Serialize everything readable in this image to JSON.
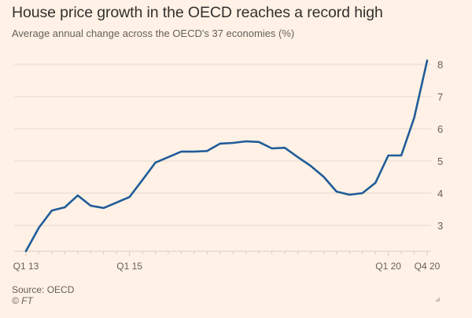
{
  "chart_data": {
    "type": "line",
    "title": "House price growth in the OECD reaches a record high",
    "subtitle": "Average annual change across the OECD's 37 economies (%)",
    "xlabel": "",
    "ylabel": "",
    "x": [
      "Q1 13",
      "Q2 13",
      "Q3 13",
      "Q4 13",
      "Q1 14",
      "Q2 14",
      "Q3 14",
      "Q4 14",
      "Q1 15",
      "Q2 15",
      "Q3 15",
      "Q4 15",
      "Q1 16",
      "Q2 16",
      "Q3 16",
      "Q4 16",
      "Q1 17",
      "Q2 17",
      "Q3 17",
      "Q4 17",
      "Q1 18",
      "Q2 18",
      "Q3 18",
      "Q4 18",
      "Q1 19",
      "Q2 19",
      "Q3 19",
      "Q4 19",
      "Q1 20",
      "Q2 20",
      "Q3 20",
      "Q4 20"
    ],
    "series": [
      {
        "name": "Average annual change (%)",
        "color": "#1f5c99",
        "values": [
          2.2,
          2.93,
          3.46,
          3.56,
          3.93,
          3.61,
          3.54,
          3.71,
          3.88,
          4.41,
          4.95,
          5.12,
          5.29,
          5.29,
          5.31,
          5.54,
          5.56,
          5.61,
          5.59,
          5.39,
          5.41,
          5.12,
          4.85,
          4.51,
          4.05,
          3.95,
          4.0,
          4.32,
          5.17,
          5.17,
          6.34,
          8.12
        ]
      }
    ],
    "x_tick_labels": [
      {
        "index": 0,
        "label": "Q1 13"
      },
      {
        "index": 8,
        "label": "Q1 15"
      },
      {
        "index": 28,
        "label": "Q1 20"
      },
      {
        "index": 31,
        "label": "Q4 20"
      }
    ],
    "y_ticks": [
      3,
      4,
      5,
      6,
      7,
      8
    ],
    "ylim": [
      2.2,
      8.2
    ],
    "grid": true,
    "y_axis_side": "right",
    "legend": "none"
  },
  "source": "Source: OECD",
  "copyright": "© FT"
}
